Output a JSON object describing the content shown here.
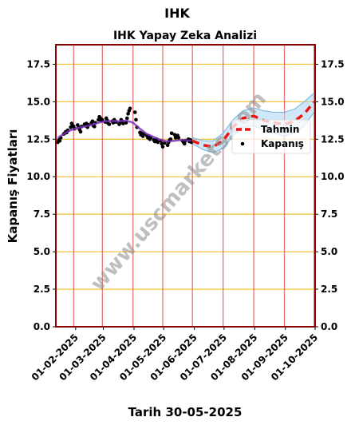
{
  "figure": {
    "title": "IHK",
    "subtitle": "IHK Yapay Zeka Analizi",
    "xlabel": "Tarih 30-05-2025",
    "ylabel": "Kapanış Fiyatları",
    "watermark": "www.uscmarkets.com"
  },
  "colors": {
    "frame": "#8b0000",
    "hgrid": "#f5c542",
    "vgrid": "#e05050",
    "close": "#000000",
    "trend": "#7b2fbe",
    "forecast": "#ee1111",
    "band": "#a8d4ee"
  },
  "chart_data": {
    "type": "line",
    "title": "IHK Yapay Zeka Analizi",
    "xlabel": "Tarih 30-05-2025",
    "ylabel": "Kapanış Fiyatları",
    "ylim": [
      0,
      18.8
    ],
    "xlim": [
      "2025-01-12",
      "2025-10-01"
    ],
    "yticks": [
      0.0,
      2.5,
      5.0,
      7.5,
      10.0,
      12.5,
      15.0,
      17.5
    ],
    "ytick_labels": [
      "0.0",
      "2.5",
      "5.0",
      "7.5",
      "10.0",
      "12.5",
      "15.0",
      "17.5"
    ],
    "xticks": [
      "2025-02-01",
      "2025-03-01",
      "2025-04-01",
      "2025-05-01",
      "2025-06-01",
      "2025-07-01",
      "2025-08-01",
      "2025-09-01",
      "2025-10-01"
    ],
    "xtick_labels": [
      "01-02-2025",
      "01-03-2025",
      "01-04-2025",
      "01-05-2025",
      "01-06-2025",
      "01-07-2025",
      "01-08-2025",
      "01-09-2025",
      "01-10-2025"
    ],
    "vlines": [
      "2025-01-30",
      "2025-02-28",
      "2025-03-31",
      "2025-04-30",
      "2025-05-30",
      "2025-06-30",
      "2025-07-31",
      "2025-08-31",
      "2025-09-30"
    ],
    "grid": true,
    "legend_position": "right",
    "series": [
      {
        "name": "Kapanış",
        "style": "points",
        "x": [
          "2025-01-14",
          "2025-01-15",
          "2025-01-16",
          "2025-01-17",
          "2025-01-20",
          "2025-01-21",
          "2025-01-22",
          "2025-01-23",
          "2025-01-24",
          "2025-01-27",
          "2025-01-28",
          "2025-01-29",
          "2025-01-30",
          "2025-01-31",
          "2025-02-03",
          "2025-02-04",
          "2025-02-05",
          "2025-02-06",
          "2025-02-07",
          "2025-02-10",
          "2025-02-11",
          "2025-02-12",
          "2025-02-13",
          "2025-02-14",
          "2025-02-17",
          "2025-02-18",
          "2025-02-19",
          "2025-02-20",
          "2025-02-21",
          "2025-02-24",
          "2025-02-25",
          "2025-02-26",
          "2025-02-27",
          "2025-02-28",
          "2025-03-03",
          "2025-03-04",
          "2025-03-05",
          "2025-03-06",
          "2025-03-07",
          "2025-03-10",
          "2025-03-11",
          "2025-03-12",
          "2025-03-13",
          "2025-03-14",
          "2025-03-17",
          "2025-03-18",
          "2025-03-19",
          "2025-03-20",
          "2025-03-21",
          "2025-03-24",
          "2025-03-25",
          "2025-03-26",
          "2025-03-27",
          "2025-03-28",
          "2025-04-02",
          "2025-04-03",
          "2025-04-04",
          "2025-04-07",
          "2025-04-08",
          "2025-04-09",
          "2025-04-10",
          "2025-04-11",
          "2025-04-14",
          "2025-04-15",
          "2025-04-16",
          "2025-04-17",
          "2025-04-18",
          "2025-04-21",
          "2025-04-22",
          "2025-04-24",
          "2025-04-25",
          "2025-04-28",
          "2025-04-29",
          "2025-04-30",
          "2025-05-02",
          "2025-05-05",
          "2025-05-06",
          "2025-05-07",
          "2025-05-08",
          "2025-05-09",
          "2025-05-12",
          "2025-05-13",
          "2025-05-14",
          "2025-05-15",
          "2025-05-16",
          "2025-05-20",
          "2025-05-21",
          "2025-05-22",
          "2025-05-23",
          "2025-05-26",
          "2025-05-27",
          "2025-05-28",
          "2025-05-29"
        ],
        "y": [
          12.3,
          12.45,
          12.4,
          12.6,
          12.85,
          12.9,
          13.0,
          12.95,
          13.1,
          13.3,
          13.55,
          13.4,
          13.35,
          13.2,
          13.45,
          13.3,
          13.15,
          13.0,
          13.35,
          13.5,
          13.4,
          13.55,
          13.3,
          13.45,
          13.6,
          13.7,
          13.4,
          13.35,
          13.6,
          13.8,
          14.0,
          13.9,
          13.75,
          13.8,
          13.65,
          13.9,
          13.75,
          13.55,
          13.5,
          13.7,
          13.6,
          13.8,
          13.7,
          13.65,
          13.5,
          13.6,
          13.8,
          13.7,
          13.55,
          13.6,
          13.9,
          14.2,
          14.4,
          14.55,
          14.3,
          13.8,
          13.3,
          12.95,
          12.8,
          12.9,
          12.7,
          12.85,
          12.75,
          12.6,
          12.7,
          12.5,
          12.6,
          12.45,
          12.35,
          12.5,
          12.3,
          12.4,
          12.2,
          12.0,
          12.25,
          12.1,
          12.3,
          12.45,
          12.5,
          12.9,
          12.8,
          12.6,
          12.7,
          12.75,
          12.6,
          12.4,
          12.3,
          12.2,
          12.4,
          12.5,
          12.35,
          12.45,
          12.3
        ]
      },
      {
        "style": "line",
        "x": [
          "2025-01-14",
          "2025-01-20",
          "2025-01-27",
          "2025-02-03",
          "2025-02-10",
          "2025-02-17",
          "2025-02-24",
          "2025-03-03",
          "2025-03-10",
          "2025-03-17",
          "2025-03-24",
          "2025-03-31",
          "2025-04-07",
          "2025-04-14",
          "2025-04-21",
          "2025-04-28",
          "2025-05-05",
          "2025-05-12",
          "2025-05-19",
          "2025-05-29"
        ],
        "y": [
          12.6,
          12.85,
          13.1,
          13.25,
          13.35,
          13.45,
          13.6,
          13.7,
          13.72,
          13.7,
          13.75,
          13.6,
          13.2,
          12.85,
          12.65,
          12.45,
          12.35,
          12.4,
          12.45,
          12.4
        ]
      },
      {
        "name": "Tahmin",
        "style": "dashed",
        "x": [
          "2025-05-30",
          "2025-06-10",
          "2025-06-20",
          "2025-06-30",
          "2025-07-10",
          "2025-07-20",
          "2025-07-31",
          "2025-08-10",
          "2025-08-20",
          "2025-08-31",
          "2025-09-10",
          "2025-09-20",
          "2025-09-30"
        ],
        "y": [
          12.4,
          12.1,
          12.0,
          12.4,
          13.3,
          13.9,
          14.05,
          13.75,
          13.6,
          13.5,
          13.7,
          14.2,
          15.0
        ],
        "band_upper": [
          12.6,
          12.4,
          12.4,
          12.9,
          13.8,
          14.4,
          14.6,
          14.4,
          14.3,
          14.3,
          14.5,
          15.0,
          15.6
        ],
        "band_lower": [
          12.2,
          11.8,
          11.6,
          11.9,
          12.7,
          13.3,
          13.4,
          13.1,
          12.9,
          12.7,
          12.9,
          13.4,
          14.3
        ]
      }
    ]
  }
}
